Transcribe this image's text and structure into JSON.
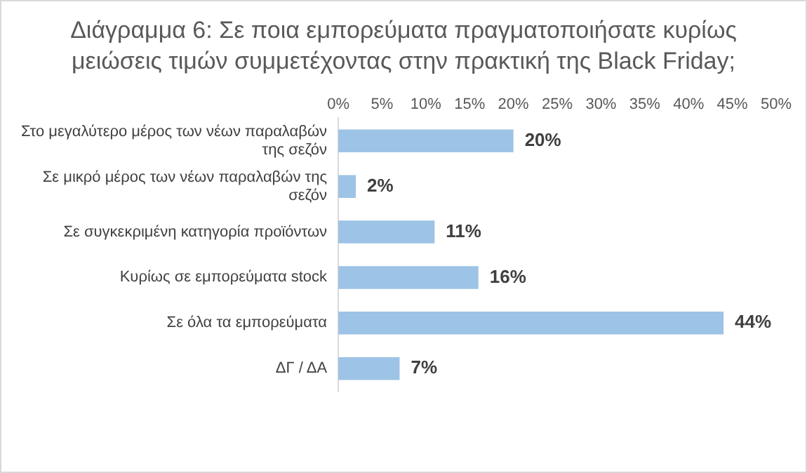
{
  "chart_data": {
    "type": "bar",
    "orientation": "horizontal",
    "title": "Διάγραμμα 6: Σε ποια εμπορεύματα πραγματοποιήσατε κυρίως μειώσεις τιμών συμμετέχοντας στην πρακτική της Black Friday;",
    "categories": [
      "Στο μεγαλύτερο μέρος των νέων παραλαβών της σεζόν",
      "Σε μικρό μέρος των νέων παραλαβών της σεζόν",
      "Σε συγκεκριμένη κατηγορία προϊόντων",
      "Κυρίως σε εμπορεύματα stock",
      "Σε όλα τα εμπορεύματα",
      "ΔΓ / ΔΑ"
    ],
    "values": [
      20,
      2,
      11,
      16,
      44,
      7
    ],
    "value_labels": [
      "20%",
      "2%",
      "11%",
      "16%",
      "44%",
      "7%"
    ],
    "color": "#9dc3e6",
    "xlim": [
      0,
      50
    ],
    "xticks": [
      {
        "value": 0,
        "label": "0%"
      },
      {
        "value": 5,
        "label": "5%"
      },
      {
        "value": 10,
        "label": "10%"
      },
      {
        "value": 15,
        "label": "15%"
      },
      {
        "value": 20,
        "label": "20%"
      },
      {
        "value": 25,
        "label": "25%"
      },
      {
        "value": 30,
        "label": "30%"
      },
      {
        "value": 35,
        "label": "35%"
      },
      {
        "value": 40,
        "label": "40%"
      },
      {
        "value": 45,
        "label": "45%"
      },
      {
        "value": 50,
        "label": "50%"
      }
    ],
    "grid": false,
    "legend": false
  }
}
